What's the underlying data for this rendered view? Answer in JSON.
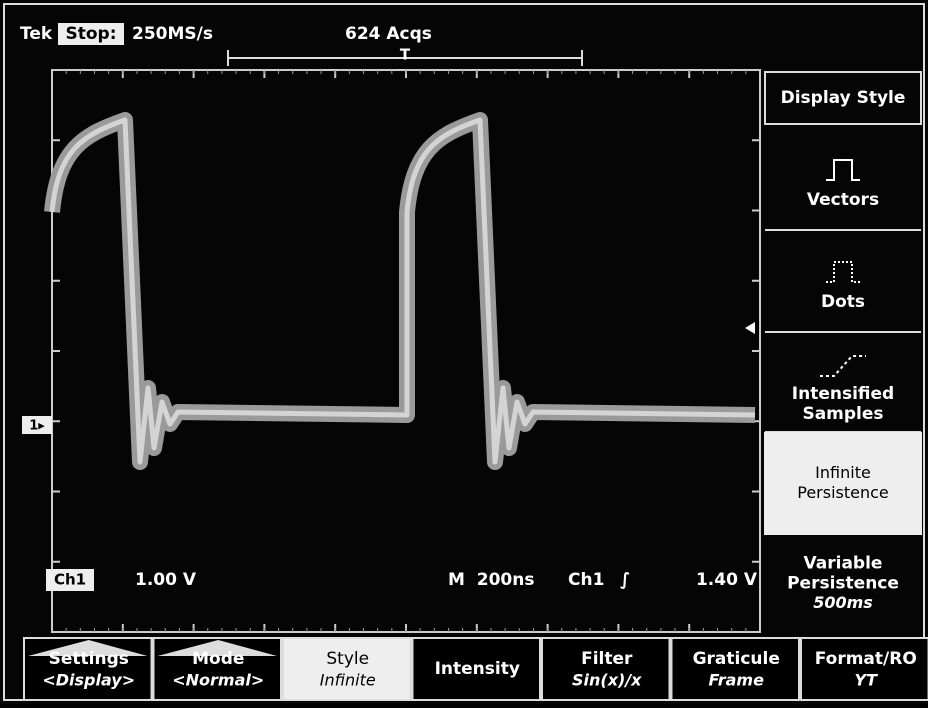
{
  "header": {
    "brand": "Tek",
    "state": "Stop:",
    "rate": "250MS/s",
    "acquisitions": "624 Acqs",
    "trigger_marker": "T"
  },
  "side_menu": {
    "title": "Display Style",
    "items": [
      {
        "lines": [
          "Vectors"
        ]
      },
      {
        "lines": [
          "Dots"
        ]
      },
      {
        "lines": [
          "Intensified",
          "Samples"
        ]
      },
      {
        "lines": [
          "Infinite",
          "Persistence"
        ]
      },
      {
        "lines": [
          "Variable",
          "Persistence"
        ],
        "sub": "500ms"
      }
    ]
  },
  "readout": {
    "channel": "Ch1",
    "volts_per_div": "1.00 V",
    "timebase": "M  200ns",
    "trigger_source": "Ch1",
    "trigger_slope": "∫",
    "trigger_level": "1.40 V",
    "ground_marker": "1▸"
  },
  "bottom_menu": [
    {
      "label": "Settings",
      "sub": "<Display>"
    },
    {
      "label": "Mode",
      "sub": "<Normal>"
    },
    {
      "label": "Style",
      "sub": "Infinite"
    },
    {
      "label": "Intensity"
    },
    {
      "label": "Filter",
      "sub": "Sin(x)/x"
    },
    {
      "label": "Graticule",
      "sub": "Frame"
    },
    {
      "label": "Format/RO",
      "sub": "YT"
    }
  ]
}
